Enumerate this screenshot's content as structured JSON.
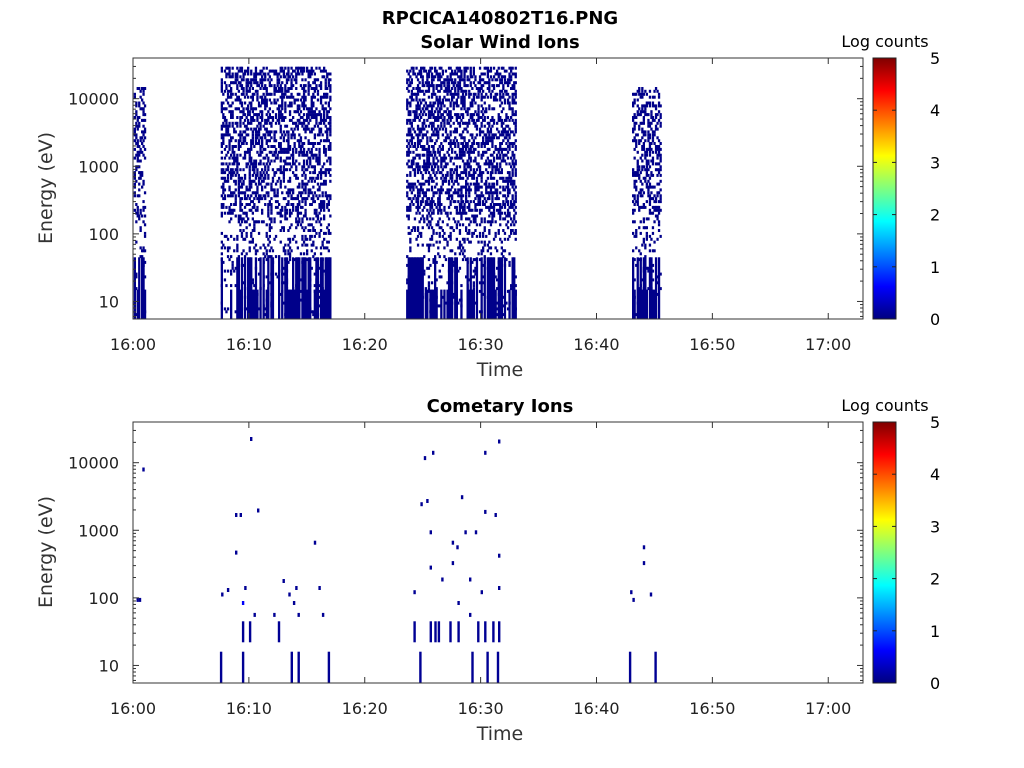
{
  "figure_title": "RPCICA140802T16.PNG",
  "chart_data": [
    {
      "type": "heatmap",
      "title": "Solar Wind Ions",
      "xlabel": "Time",
      "ylabel": "Energy (eV)",
      "y_scale": "log",
      "x_range": [
        "16:00",
        "17:03"
      ],
      "y_range": [
        5.5,
        40000
      ],
      "x_ticks": [
        "16:00",
        "16:10",
        "16:20",
        "16:30",
        "16:40",
        "16:50",
        "17:00"
      ],
      "y_ticks": [
        "10",
        "100",
        "1000",
        "10000"
      ],
      "colorbar": {
        "label": "Log counts",
        "min": 0,
        "max": 5,
        "ticks": [
          "0",
          "1",
          "2",
          "3",
          "4",
          "5"
        ],
        "colormap": "jet"
      },
      "active_intervals": [
        {
          "start": "16:00",
          "end": "16:01",
          "min_energy": 6,
          "max_energy": 15000,
          "density": 0.35
        },
        {
          "start": "16:07.5",
          "end": "16:17",
          "min_energy": 6,
          "max_energy": 30000,
          "density": 0.42
        },
        {
          "start": "16:23.5",
          "end": "16:33",
          "min_energy": 6,
          "max_energy": 30000,
          "density": 0.45
        },
        {
          "start": "16:43",
          "end": "16:45.5",
          "min_energy": 6,
          "max_energy": 15000,
          "density": 0.4
        }
      ],
      "typical_log_counts": 0.05
    },
    {
      "type": "heatmap",
      "title": "Cometary Ions",
      "xlabel": "Time",
      "ylabel": "Energy (eV)",
      "y_scale": "log",
      "x_range": [
        "16:00",
        "17:03"
      ],
      "y_range": [
        5.5,
        40000
      ],
      "x_ticks": [
        "16:00",
        "16:10",
        "16:20",
        "16:30",
        "16:40",
        "16:50",
        "17:00"
      ],
      "y_ticks": [
        "10",
        "100",
        "1000",
        "10000"
      ],
      "colorbar": {
        "label": "Log counts",
        "min": 0,
        "max": 5,
        "ticks": [
          "0",
          "1",
          "2",
          "3",
          "4",
          "5"
        ],
        "colormap": "jet"
      },
      "points": [
        {
          "t": 0.3,
          "e": 100,
          "c": 0.1
        },
        {
          "t": 0.5,
          "e": 100,
          "c": 0.1
        },
        {
          "t": 0.8,
          "e": 8500,
          "c": 0.1
        },
        {
          "t": 7.5,
          "e": 10,
          "c": 0.1
        },
        {
          "t": 7.6,
          "e": 120,
          "c": 0.1
        },
        {
          "t": 8.1,
          "e": 140,
          "c": 0.1
        },
        {
          "t": 8.8,
          "e": 1800,
          "c": 0.1
        },
        {
          "t": 8.8,
          "e": 500,
          "c": 0.1
        },
        {
          "t": 9.2,
          "e": 1800,
          "c": 0.1
        },
        {
          "t": 9.4,
          "e": 30,
          "c": 0.1
        },
        {
          "t": 9.4,
          "e": 10,
          "c": 0.1
        },
        {
          "t": 9.4,
          "e": 90,
          "c": 0.6
        },
        {
          "t": 9.6,
          "e": 150,
          "c": 0.1
        },
        {
          "t": 10.0,
          "e": 30,
          "c": 0.1
        },
        {
          "t": 10.1,
          "e": 24000,
          "c": 0.1
        },
        {
          "t": 10.4,
          "e": 60,
          "c": 0.1
        },
        {
          "t": 10.7,
          "e": 2100,
          "c": 0.1
        },
        {
          "t": 12.1,
          "e": 60,
          "c": 0.1
        },
        {
          "t": 12.5,
          "e": 30,
          "c": 0.1
        },
        {
          "t": 12.9,
          "e": 190,
          "c": 0.1
        },
        {
          "t": 13.4,
          "e": 120,
          "c": 0.1
        },
        {
          "t": 13.6,
          "e": 10,
          "c": 0.1
        },
        {
          "t": 13.8,
          "e": 90,
          "c": 0.1
        },
        {
          "t": 14.0,
          "e": 150,
          "c": 0.1
        },
        {
          "t": 14.2,
          "e": 10,
          "c": 0.1
        },
        {
          "t": 14.2,
          "e": 60,
          "c": 0.1
        },
        {
          "t": 15.6,
          "e": 700,
          "c": 0.1
        },
        {
          "t": 16.0,
          "e": 150,
          "c": 0.1
        },
        {
          "t": 16.3,
          "e": 60,
          "c": 0.1
        },
        {
          "t": 16.8,
          "e": 10,
          "c": 0.1
        },
        {
          "t": 24.2,
          "e": 130,
          "c": 0.1
        },
        {
          "t": 24.2,
          "e": 30,
          "c": 0.1
        },
        {
          "t": 24.7,
          "e": 10,
          "c": 0.1
        },
        {
          "t": 24.8,
          "e": 2600,
          "c": 0.1
        },
        {
          "t": 25.1,
          "e": 12500,
          "c": 0.1
        },
        {
          "t": 25.3,
          "e": 2900,
          "c": 0.1
        },
        {
          "t": 25.6,
          "e": 1000,
          "c": 0.1
        },
        {
          "t": 25.6,
          "e": 300,
          "c": 0.1
        },
        {
          "t": 25.6,
          "e": 30,
          "c": 0.1
        },
        {
          "t": 25.8,
          "e": 15000,
          "c": 0.1
        },
        {
          "t": 26.0,
          "e": 30,
          "c": 0.1
        },
        {
          "t": 26.3,
          "e": 30,
          "c": 0.1
        },
        {
          "t": 26.6,
          "e": 200,
          "c": 0.1
        },
        {
          "t": 27.3,
          "e": 30,
          "c": 0.1
        },
        {
          "t": 27.5,
          "e": 350,
          "c": 0.1
        },
        {
          "t": 27.5,
          "e": 700,
          "c": 0.1
        },
        {
          "t": 27.9,
          "e": 600,
          "c": 0.1
        },
        {
          "t": 28.0,
          "e": 30,
          "c": 0.1
        },
        {
          "t": 28.0,
          "e": 90,
          "c": 0.1
        },
        {
          "t": 28.3,
          "e": 3300,
          "c": 0.1
        },
        {
          "t": 28.6,
          "e": 1000,
          "c": 0.1
        },
        {
          "t": 29.0,
          "e": 200,
          "c": 0.1
        },
        {
          "t": 29.0,
          "e": 60,
          "c": 0.1
        },
        {
          "t": 29.2,
          "e": 10,
          "c": 0.1
        },
        {
          "t": 29.5,
          "e": 1000,
          "c": 0.1
        },
        {
          "t": 29.7,
          "e": 30,
          "c": 0.1
        },
        {
          "t": 30.0,
          "e": 130,
          "c": 0.1
        },
        {
          "t": 30.3,
          "e": 30,
          "c": 0.1
        },
        {
          "t": 30.3,
          "e": 2000,
          "c": 0.1
        },
        {
          "t": 30.3,
          "e": 15000,
          "c": 0.1
        },
        {
          "t": 30.5,
          "e": 10,
          "c": 0.1
        },
        {
          "t": 31.0,
          "e": 30,
          "c": 0.1
        },
        {
          "t": 31.2,
          "e": 1800,
          "c": 0.1
        },
        {
          "t": 31.4,
          "e": 10,
          "c": 0.1
        },
        {
          "t": 31.5,
          "e": 30,
          "c": 0.1
        },
        {
          "t": 31.5,
          "e": 150,
          "c": 0.1
        },
        {
          "t": 31.5,
          "e": 450,
          "c": 0.1
        },
        {
          "t": 31.5,
          "e": 22000,
          "c": 0.1
        },
        {
          "t": 42.8,
          "e": 10,
          "c": 0.1
        },
        {
          "t": 42.9,
          "e": 130,
          "c": 0.1
        },
        {
          "t": 43.1,
          "e": 100,
          "c": 0.1
        },
        {
          "t": 44.0,
          "e": 600,
          "c": 0.1
        },
        {
          "t": 44.0,
          "e": 350,
          "c": 0.1
        },
        {
          "t": 44.6,
          "e": 120,
          "c": 0.1
        },
        {
          "t": 45.0,
          "e": 10,
          "c": 0.1
        }
      ]
    }
  ]
}
